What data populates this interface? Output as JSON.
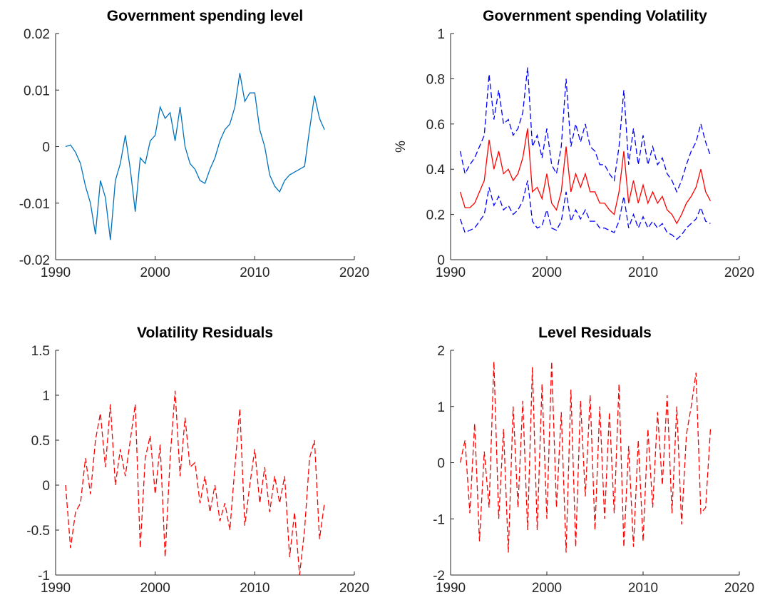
{
  "chart_data": [
    {
      "type": "line",
      "title": "Government spending level",
      "x": [
        1991,
        1991.5,
        1992,
        1992.5,
        1993,
        1993.5,
        1994,
        1994.5,
        1995,
        1995.5,
        1996,
        1996.5,
        1997,
        1997.5,
        1998,
        1998.5,
        1999,
        1999.5,
        2000,
        2000.5,
        2001,
        2001.5,
        2002,
        2002.5,
        2003,
        2003.5,
        2004,
        2004.5,
        2005,
        2005.5,
        2006,
        2006.5,
        2007,
        2007.5,
        2008,
        2008.5,
        2009,
        2009.5,
        2010,
        2010.5,
        2011,
        2011.5,
        2012,
        2012.5,
        2013,
        2013.5,
        2014,
        2014.5,
        2015,
        2015.5,
        2016,
        2016.5,
        2017
      ],
      "series": [
        {
          "color": "#0072bd",
          "line_style": "solid",
          "values": [
            0,
            0.0003,
            -0.001,
            -0.003,
            -0.007,
            -0.01,
            -0.0155,
            -0.006,
            -0.009,
            -0.0165,
            -0.006,
            -0.003,
            0.002,
            -0.004,
            -0.0115,
            -0.002,
            -0.003,
            0.001,
            0.002,
            0.007,
            0.005,
            0.006,
            0.001,
            0.007,
            0,
            -0.003,
            -0.004,
            -0.006,
            -0.0065,
            -0.004,
            -0.002,
            0.001,
            0.003,
            0.004,
            0.007,
            0.013,
            0.008,
            0.0095,
            0.0095,
            0.003,
            0,
            -0.005,
            -0.007,
            -0.008,
            -0.006,
            -0.005,
            -0.0045,
            -0.004,
            -0.0035,
            0.003,
            0.009,
            0.005,
            0.003
          ]
        }
      ],
      "xlim": [
        1990,
        2020
      ],
      "xticks": [
        1990,
        2000,
        2010,
        2020
      ],
      "ylim": [
        -0.02,
        0.02
      ],
      "yticks": [
        -0.02,
        -0.01,
        0,
        0.01,
        0.02
      ]
    },
    {
      "type": "line",
      "title": "Government spending Volatility",
      "ylabel": "%",
      "x": [
        1991,
        1991.5,
        1992,
        1992.5,
        1993,
        1993.5,
        1994,
        1994.5,
        1995,
        1995.5,
        1996,
        1996.5,
        1997,
        1997.5,
        1998,
        1998.5,
        1999,
        1999.5,
        2000,
        2000.5,
        2001,
        2001.5,
        2002,
        2002.5,
        2003,
        2003.5,
        2004,
        2004.5,
        2005,
        2005.5,
        2006,
        2006.5,
        2007,
        2007.5,
        2008,
        2008.5,
        2009,
        2009.5,
        2010,
        2010.5,
        2011,
        2011.5,
        2012,
        2012.5,
        2013,
        2013.5,
        2014,
        2014.5,
        2015,
        2015.5,
        2016,
        2016.5,
        2017
      ],
      "series": [
        {
          "color": "#ff0000",
          "line_style": "solid",
          "values": [
            0.3,
            0.23,
            0.23,
            0.25,
            0.3,
            0.35,
            0.53,
            0.4,
            0.48,
            0.38,
            0.4,
            0.35,
            0.38,
            0.45,
            0.58,
            0.3,
            0.32,
            0.27,
            0.38,
            0.25,
            0.22,
            0.3,
            0.5,
            0.3,
            0.38,
            0.32,
            0.38,
            0.3,
            0.3,
            0.25,
            0.25,
            0.22,
            0.2,
            0.3,
            0.48,
            0.25,
            0.35,
            0.25,
            0.33,
            0.25,
            0.3,
            0.25,
            0.28,
            0.22,
            0.2,
            0.16,
            0.2,
            0.25,
            0.28,
            0.32,
            0.4,
            0.3,
            0.26
          ]
        },
        {
          "color": "#0000ff",
          "line_style": "dashed",
          "values": [
            0.48,
            0.38,
            0.42,
            0.45,
            0.5,
            0.55,
            0.82,
            0.62,
            0.75,
            0.6,
            0.62,
            0.55,
            0.58,
            0.65,
            0.85,
            0.5,
            0.55,
            0.45,
            0.58,
            0.42,
            0.38,
            0.5,
            0.8,
            0.5,
            0.6,
            0.52,
            0.6,
            0.5,
            0.48,
            0.42,
            0.42,
            0.38,
            0.35,
            0.5,
            0.75,
            0.42,
            0.58,
            0.42,
            0.55,
            0.42,
            0.5,
            0.42,
            0.45,
            0.38,
            0.35,
            0.3,
            0.35,
            0.42,
            0.48,
            0.52,
            0.6,
            0.52,
            0.46
          ]
        },
        {
          "color": "#0000ff",
          "line_style": "dashed",
          "values": [
            0.18,
            0.12,
            0.13,
            0.14,
            0.17,
            0.2,
            0.32,
            0.24,
            0.28,
            0.22,
            0.24,
            0.2,
            0.22,
            0.26,
            0.35,
            0.17,
            0.14,
            0.15,
            0.22,
            0.14,
            0.13,
            0.17,
            0.3,
            0.17,
            0.22,
            0.18,
            0.22,
            0.17,
            0.17,
            0.14,
            0.14,
            0.13,
            0.12,
            0.17,
            0.28,
            0.14,
            0.2,
            0.14,
            0.19,
            0.14,
            0.17,
            0.14,
            0.16,
            0.12,
            0.11,
            0.09,
            0.11,
            0.14,
            0.16,
            0.18,
            0.23,
            0.17,
            0.16
          ]
        }
      ],
      "xlim": [
        1990,
        2020
      ],
      "xticks": [
        1990,
        2000,
        2010,
        2020
      ],
      "ylim": [
        0,
        1
      ],
      "yticks": [
        0,
        0.2,
        0.4,
        0.6,
        0.8,
        1
      ]
    },
    {
      "type": "line",
      "title": "Volatility Residuals",
      "x": [
        1991,
        1991.5,
        1992,
        1992.5,
        1993,
        1993.5,
        1994,
        1994.5,
        1995,
        1995.5,
        1996,
        1996.5,
        1997,
        1997.5,
        1998,
        1998.5,
        1999,
        1999.5,
        2000,
        2000.5,
        2001,
        2001.5,
        2002,
        2002.5,
        2003,
        2003.5,
        2004,
        2004.5,
        2005,
        2005.5,
        2006,
        2006.5,
        2007,
        2007.5,
        2008,
        2008.5,
        2009,
        2009.5,
        2010,
        2010.5,
        2011,
        2011.5,
        2012,
        2012.5,
        2013,
        2013.5,
        2014,
        2014.5,
        2015,
        2015.5,
        2016,
        2016.5,
        2017
      ],
      "series": [
        {
          "color": "#ff0000",
          "line_style": "dashed",
          "values": [
            0,
            -0.7,
            -0.3,
            -0.2,
            0.3,
            -0.1,
            0.5,
            0.8,
            0.2,
            0.9,
            0,
            0.4,
            0.1,
            0.5,
            0.9,
            -0.7,
            0.3,
            0.55,
            -0.1,
            0.45,
            -0.8,
            0.3,
            1.05,
            0.1,
            0.75,
            0.2,
            0.25,
            -0.2,
            0.1,
            -0.3,
            0,
            -0.4,
            -0.2,
            -0.5,
            0.2,
            0.85,
            -0.45,
            0,
            0.4,
            -0.2,
            0.2,
            -0.3,
            0.1,
            -0.2,
            0.1,
            -0.8,
            -0.3,
            -1,
            -0.5,
            0.3,
            0.5,
            -0.6,
            -0.2
          ]
        }
      ],
      "xlim": [
        1990,
        2020
      ],
      "xticks": [
        1990,
        2000,
        2010,
        2020
      ],
      "ylim": [
        -1,
        1.5
      ],
      "yticks": [
        -1,
        -0.5,
        0,
        0.5,
        1,
        1.5
      ]
    },
    {
      "type": "line",
      "title": "Level Residuals",
      "x": [
        1991,
        1991.5,
        1992,
        1992.5,
        1993,
        1993.5,
        1994,
        1994.5,
        1995,
        1995.5,
        1996,
        1996.5,
        1997,
        1997.5,
        1998,
        1998.5,
        1999,
        1999.5,
        2000,
        2000.5,
        2001,
        2001.5,
        2002,
        2002.5,
        2003,
        2003.5,
        2004,
        2004.5,
        2005,
        2005.5,
        2006,
        2006.5,
        2007,
        2007.5,
        2008,
        2008.5,
        2009,
        2009.5,
        2010,
        2010.5,
        2011,
        2011.5,
        2012,
        2012.5,
        2013,
        2013.5,
        2014,
        2014.5,
        2015,
        2015.5,
        2016,
        2016.5,
        2017
      ],
      "series": [
        {
          "color": "#ff0000",
          "line_style": "dashed",
          "values": [
            0,
            0.4,
            -0.9,
            0.7,
            -1.4,
            0.2,
            -0.8,
            1.8,
            -1,
            0.6,
            -1.6,
            1,
            -0.8,
            1.1,
            -1.2,
            1.7,
            -1.2,
            1.4,
            -1,
            1.8,
            -0.8,
            0.9,
            -1.6,
            1.3,
            -1.5,
            1.1,
            -0.6,
            1.2,
            -1.2,
            1,
            -1,
            0.9,
            -0.9,
            1.4,
            -1.5,
            0.3,
            -1.5,
            0.4,
            -1.4,
            0.6,
            -0.8,
            0.9,
            -0.4,
            1.2,
            -0.9,
            1,
            -1.1,
            0.5,
            1,
            1.6,
            -0.9,
            -0.8,
            0.6
          ]
        }
      ],
      "xlim": [
        1990,
        2020
      ],
      "xticks": [
        1990,
        2000,
        2010,
        2020
      ],
      "ylim": [
        -2,
        2
      ],
      "yticks": [
        -2,
        -1,
        0,
        1,
        2
      ]
    }
  ]
}
